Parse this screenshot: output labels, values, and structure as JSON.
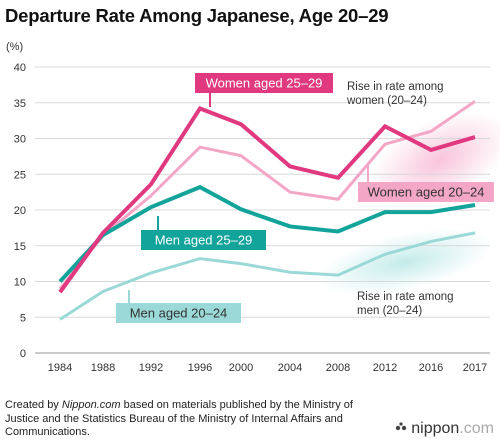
{
  "header": {
    "title": "Departure Rate Among Japanese, Age 20–29"
  },
  "footer": {
    "line_prefix": "Created by ",
    "source": "Nippon.com",
    "line_rest": " based on materials published by the Ministry of Justice and the Statistics Bureau of the Ministry of Internal Affairs and Communications."
  },
  "brand": {
    "text_a": "nippon",
    "text_b": ".com"
  },
  "chart_data": {
    "type": "line",
    "ylabel": "(%)",
    "ylim": [
      0,
      40
    ],
    "yticks": [
      0,
      5,
      10,
      15,
      20,
      25,
      30,
      35,
      40
    ],
    "grid": true,
    "x": [
      "1984",
      "1988",
      "1992",
      "1996",
      "2000",
      "2004",
      "2008",
      "2012",
      "2016",
      "2017"
    ],
    "series": [
      {
        "name": "Women aged 25–29",
        "color": "#e0397f",
        "width": 4,
        "values": [
          8.5,
          16.8,
          23.6,
          34.2,
          32.0,
          26.1,
          24.5,
          31.7,
          28.4,
          30.2
        ]
      },
      {
        "name": "Women aged 20–24",
        "color": "#f4a6c6",
        "width": 3,
        "values": [
          9.0,
          16.4,
          22.0,
          28.8,
          27.6,
          22.5,
          21.5,
          29.2,
          31.0,
          35.2
        ]
      },
      {
        "name": "Men aged 25–29",
        "color": "#12a49a",
        "width": 4,
        "values": [
          10.0,
          16.5,
          20.4,
          23.2,
          20.1,
          17.7,
          17.0,
          19.7,
          19.7,
          20.7
        ]
      },
      {
        "name": "Men aged 20–24",
        "color": "#9ad9d8",
        "width": 3,
        "values": [
          4.7,
          8.6,
          11.2,
          13.2,
          12.5,
          11.3,
          10.9,
          13.8,
          15.6,
          16.8
        ]
      }
    ],
    "annotations": [
      {
        "text": "Rise in rate among women (20–24)"
      },
      {
        "text": "Rise in rate among men (20–24)"
      }
    ]
  }
}
